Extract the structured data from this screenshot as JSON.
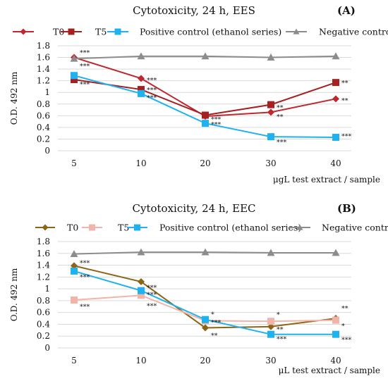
{
  "chart_data": [
    {
      "type": "line",
      "title": "Cytotoxicity, 24 h, EES",
      "panel_label": "(A)",
      "ylabel": "O.D. 492 nm",
      "xlabel": "μgL test extract / sample",
      "categories": [
        "5",
        "10",
        "20",
        "30",
        "40"
      ],
      "ylim": [
        0,
        1.8
      ],
      "yticks": [
        "0",
        "0.2",
        "0.4",
        "0.6",
        "0.8",
        "1",
        "1.2",
        "1.4",
        "1.6",
        "1.8"
      ],
      "grid": true,
      "legend_position": "top",
      "series": [
        {
          "name": "T0",
          "values": [
            1.6,
            1.24,
            0.59,
            0.66,
            0.89
          ],
          "color": "#c0282f",
          "marker": "diamond"
        },
        {
          "name": "T5",
          "values": [
            1.22,
            1.05,
            0.61,
            0.79,
            1.17
          ],
          "color": "#a52020",
          "marker": "square"
        },
        {
          "name": "Positive control (ethanol series)",
          "values": [
            1.29,
            0.98,
            0.47,
            0.24,
            0.23
          ],
          "color": "#1fb2ef",
          "marker": "square"
        },
        {
          "name": "Negative control",
          "values": [
            1.58,
            1.62,
            1.62,
            1.6,
            1.62
          ],
          "color": "#8c8c8c",
          "marker": "triangle"
        }
      ],
      "annotations": [
        {
          "text": "***",
          "x": "5",
          "y": 1.69
        },
        {
          "text": "***",
          "x": "5",
          "y": 1.46
        },
        {
          "text": "***",
          "x": "5",
          "y": 1.15
        },
        {
          "text": "***",
          "x": "10",
          "y": 1.22
        },
        {
          "text": "***",
          "x": "10",
          "y": 1.05
        },
        {
          "text": "***",
          "x": "10",
          "y": 0.92
        },
        {
          "text": "***",
          "x": "20",
          "y": 0.55
        },
        {
          "text": "***",
          "x": "20",
          "y": 0.46
        },
        {
          "text": "**",
          "x": "30",
          "y": 0.75
        },
        {
          "text": "**",
          "x": "30",
          "y": 0.59
        },
        {
          "text": "***",
          "x": "30",
          "y": 0.16
        },
        {
          "text": "**",
          "x": "40",
          "y": 1.17
        },
        {
          "text": "**",
          "x": "40",
          "y": 0.87
        },
        {
          "text": "***",
          "x": "40",
          "y": 0.26
        }
      ]
    },
    {
      "type": "line",
      "title": "Cytotoxicity, 24 h, EEC",
      "panel_label": "(B)",
      "ylabel": "O.D. 492 nm",
      "xlabel": "μL test extract / sample",
      "categories": [
        "5",
        "10",
        "20",
        "30",
        "40"
      ],
      "ylim": [
        0,
        1.8
      ],
      "yticks": [
        "0",
        "0.2",
        "0.4",
        "0.6",
        "0.8",
        "1",
        "1.2",
        "1.4",
        "1.6",
        "1.8"
      ],
      "grid": true,
      "legend_position": "top",
      "series": [
        {
          "name": "T0",
          "values": [
            1.39,
            1.12,
            0.34,
            0.36,
            0.5
          ],
          "color": "#8b6516",
          "marker": "diamond"
        },
        {
          "name": "T5",
          "values": [
            0.81,
            0.89,
            0.46,
            0.45,
            0.47
          ],
          "color": "#f0b4a8",
          "marker": "square"
        },
        {
          "name": "Positive control (ethanol series)",
          "values": [
            1.3,
            0.97,
            0.48,
            0.23,
            0.23
          ],
          "color": "#1fb2ef",
          "marker": "square"
        },
        {
          "name": "Negative control",
          "values": [
            1.59,
            1.62,
            1.62,
            1.61,
            1.61
          ],
          "color": "#8c8c8c",
          "marker": "triangle"
        }
      ],
      "annotations": [
        {
          "text": "***",
          "x": "5",
          "y": 1.45
        },
        {
          "text": "***",
          "x": "5",
          "y": 1.21
        },
        {
          "text": "***",
          "x": "5",
          "y": 0.71
        },
        {
          "text": "***",
          "x": "10",
          "y": 1.03
        },
        {
          "text": "***",
          "x": "10",
          "y": 0.91
        },
        {
          "text": "***",
          "x": "10",
          "y": 0.72
        },
        {
          "text": "*",
          "x": "20",
          "y": 0.58
        },
        {
          "text": "***",
          "x": "20",
          "y": 0.44
        },
        {
          "text": "**",
          "x": "20",
          "y": 0.22
        },
        {
          "text": "*",
          "x": "30",
          "y": 0.57
        },
        {
          "text": "**",
          "x": "30",
          "y": 0.32
        },
        {
          "text": "***",
          "x": "30",
          "y": 0.16
        },
        {
          "text": "**",
          "x": "40",
          "y": 0.68
        },
        {
          "text": "*",
          "x": "40",
          "y": 0.38
        },
        {
          "text": "***",
          "x": "40",
          "y": 0.15
        }
      ]
    }
  ]
}
